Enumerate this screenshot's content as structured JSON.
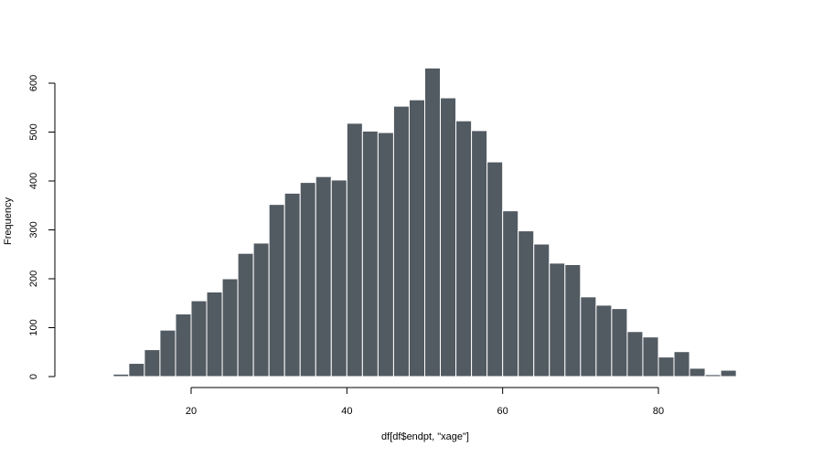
{
  "chart_data": {
    "type": "bar",
    "title": "",
    "xlabel": "df[df$endpt, \"xage\"]",
    "ylabel": "Frequency",
    "xlim": [
      10,
      90
    ],
    "ylim": [
      0,
      600
    ],
    "xticks": [
      "20",
      "40",
      "60",
      "80"
    ],
    "yticks": [
      "0",
      "100",
      "200",
      "300",
      "400",
      "500",
      "600"
    ],
    "bar_color": "#525a62",
    "bin_width": 2,
    "bins": [
      {
        "x0": 10,
        "x1": 12,
        "count": 5
      },
      {
        "x0": 12,
        "x1": 14,
        "count": 27
      },
      {
        "x0": 14,
        "x1": 16,
        "count": 55
      },
      {
        "x0": 16,
        "x1": 18,
        "count": 95
      },
      {
        "x0": 18,
        "x1": 20,
        "count": 128
      },
      {
        "x0": 20,
        "x1": 22,
        "count": 155
      },
      {
        "x0": 22,
        "x1": 24,
        "count": 173
      },
      {
        "x0": 24,
        "x1": 26,
        "count": 200
      },
      {
        "x0": 26,
        "x1": 28,
        "count": 252
      },
      {
        "x0": 28,
        "x1": 30,
        "count": 273
      },
      {
        "x0": 30,
        "x1": 32,
        "count": 352
      },
      {
        "x0": 32,
        "x1": 34,
        "count": 375
      },
      {
        "x0": 34,
        "x1": 36,
        "count": 397
      },
      {
        "x0": 36,
        "x1": 38,
        "count": 409
      },
      {
        "x0": 38,
        "x1": 40,
        "count": 402
      },
      {
        "x0": 40,
        "x1": 42,
        "count": 518
      },
      {
        "x0": 42,
        "x1": 44,
        "count": 502
      },
      {
        "x0": 44,
        "x1": 46,
        "count": 499
      },
      {
        "x0": 46,
        "x1": 48,
        "count": 553
      },
      {
        "x0": 48,
        "x1": 50,
        "count": 566
      },
      {
        "x0": 50,
        "x1": 52,
        "count": 631
      },
      {
        "x0": 52,
        "x1": 54,
        "count": 570
      },
      {
        "x0": 54,
        "x1": 56,
        "count": 523
      },
      {
        "x0": 56,
        "x1": 58,
        "count": 503
      },
      {
        "x0": 58,
        "x1": 60,
        "count": 439
      },
      {
        "x0": 60,
        "x1": 62,
        "count": 339
      },
      {
        "x0": 62,
        "x1": 64,
        "count": 298
      },
      {
        "x0": 64,
        "x1": 66,
        "count": 271
      },
      {
        "x0": 66,
        "x1": 68,
        "count": 232
      },
      {
        "x0": 68,
        "x1": 70,
        "count": 229
      },
      {
        "x0": 70,
        "x1": 72,
        "count": 163
      },
      {
        "x0": 72,
        "x1": 74,
        "count": 146
      },
      {
        "x0": 74,
        "x1": 76,
        "count": 139
      },
      {
        "x0": 76,
        "x1": 78,
        "count": 92
      },
      {
        "x0": 78,
        "x1": 80,
        "count": 81
      },
      {
        "x0": 80,
        "x1": 82,
        "count": 40
      },
      {
        "x0": 82,
        "x1": 84,
        "count": 51
      },
      {
        "x0": 84,
        "x1": 86,
        "count": 17
      },
      {
        "x0": 86,
        "x1": 88,
        "count": 4
      },
      {
        "x0": 88,
        "x1": 90,
        "count": 13
      }
    ]
  }
}
